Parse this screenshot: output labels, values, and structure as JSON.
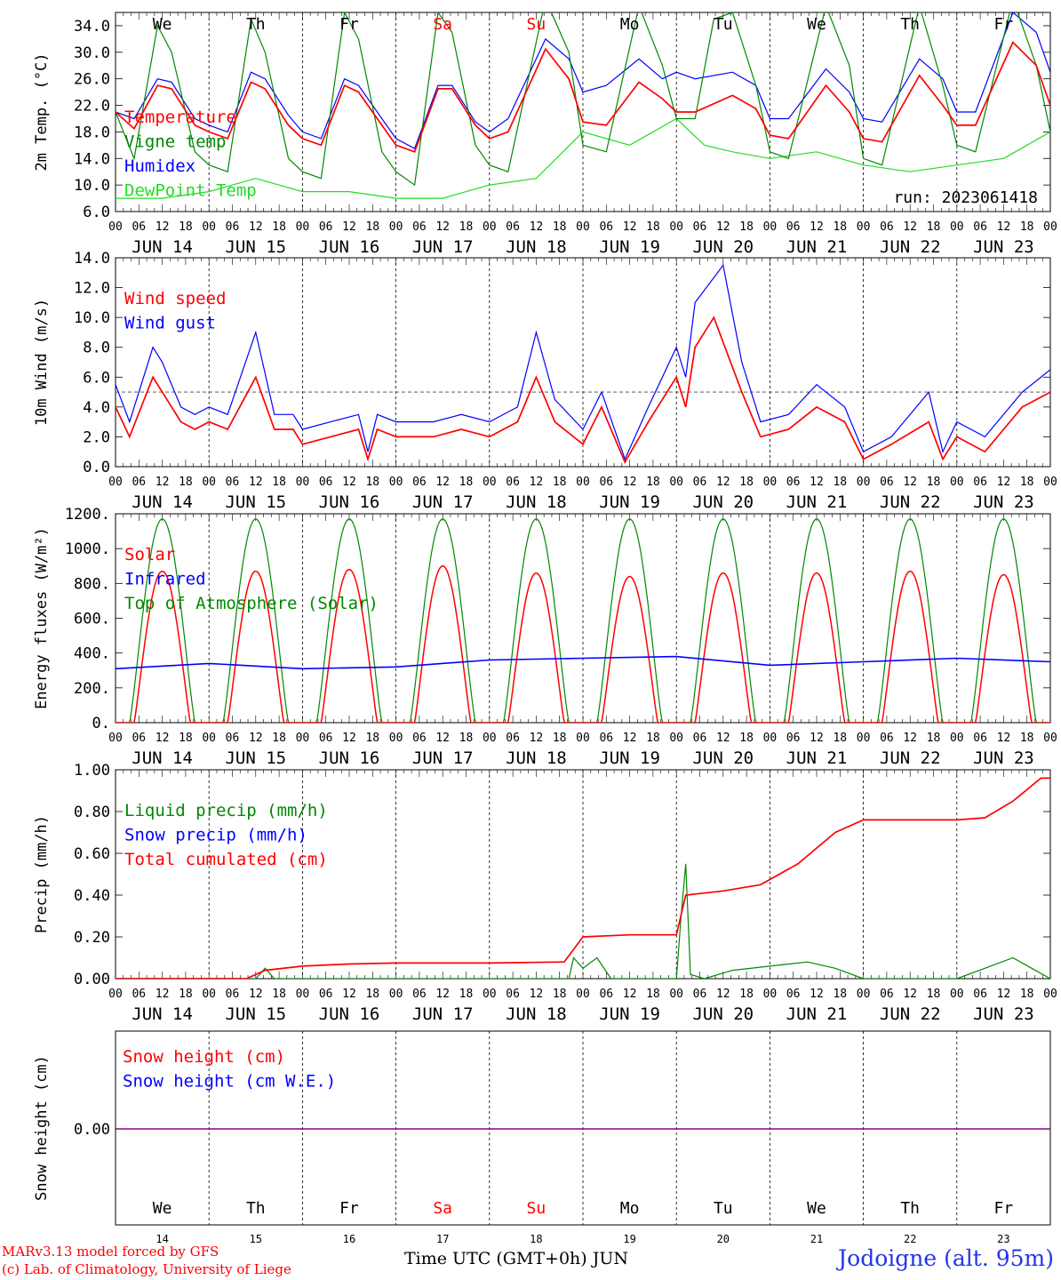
{
  "run_label": "run: 2023061418",
  "days": [
    {
      "abbr": "We",
      "date": "JUN 14",
      "num": "14",
      "weekend": false
    },
    {
      "abbr": "Th",
      "date": "JUN 15",
      "num": "15",
      "weekend": false
    },
    {
      "abbr": "Fr",
      "date": "JUN 16",
      "num": "16",
      "weekend": false
    },
    {
      "abbr": "Sa",
      "date": "JUN 17",
      "num": "17",
      "weekend": true
    },
    {
      "abbr": "Su",
      "date": "JUN 18",
      "num": "18",
      "weekend": true
    },
    {
      "abbr": "Mo",
      "date": "JUN 19",
      "num": "19",
      "weekend": false
    },
    {
      "abbr": "Tu",
      "date": "JUN 20",
      "num": "20",
      "weekend": false
    },
    {
      "abbr": "We",
      "date": "JUN 21",
      "num": "21",
      "weekend": false
    },
    {
      "abbr": "Th",
      "date": "JUN 22",
      "num": "22",
      "weekend": false
    },
    {
      "abbr": "Fr",
      "date": "JUN 23",
      "num": "23",
      "weekend": false
    }
  ],
  "hour_ticks": [
    "00",
    "06",
    "12",
    "18"
  ],
  "hour_tick_end": "00",
  "footer": {
    "credit_line1": "MARv3.13 model forced by GFS",
    "credit_line2": "(c) Lab. of Climatology, University of Liege",
    "x_title": "Time UTC (GMT+0h) JUN",
    "station": "Jodoigne (alt. 95m)"
  },
  "colors": {
    "red": "#ff0000",
    "green": "#008800",
    "blue": "#0000ff",
    "lightgreen": "#22dd22",
    "purple": "#880088",
    "weekend": "#ff0000"
  },
  "chart_data": [
    {
      "type": "line",
      "ylabel": "2m Temp. (°C)",
      "ylim": [
        6,
        36
      ],
      "yticks": [
        "6.0",
        "10.0",
        "14.0",
        "18.0",
        "22.0",
        "26.0",
        "30.0",
        "34.0"
      ],
      "ytick_values": [
        6,
        10,
        14,
        18,
        22,
        26,
        30,
        34
      ],
      "x_unit": "days since JUN 14 00 UTC",
      "legend": [
        "Temperature",
        "Vigne temp",
        "Humidex",
        "DewPoint Temp"
      ],
      "series": [
        {
          "name": "Temperature",
          "color": "red",
          "x": [
            0,
            0.2,
            0.45,
            0.6,
            0.85,
            1.0,
            1.2,
            1.45,
            1.6,
            1.85,
            2.0,
            2.2,
            2.45,
            2.6,
            2.85,
            3.0,
            3.2,
            3.45,
            3.6,
            3.85,
            4.0,
            4.2,
            4.6,
            4.85,
            5.0,
            5.25,
            5.6,
            5.85,
            6.0,
            6.2,
            6.6,
            6.85,
            7.0,
            7.2,
            7.6,
            7.85,
            8.0,
            8.2,
            8.6,
            8.85,
            9.0,
            9.2,
            9.6,
            9.85,
            10.0
          ],
          "y": [
            21,
            18.5,
            25,
            24.5,
            19,
            18,
            17,
            25.5,
            24.5,
            19,
            17,
            16,
            25,
            24,
            19,
            16,
            15,
            24.5,
            24.5,
            19,
            17,
            18,
            30.5,
            26,
            19.5,
            19,
            25.5,
            23,
            21,
            21,
            23.5,
            21.5,
            17.5,
            17,
            25,
            21,
            17,
            16.5,
            26.5,
            22,
            19,
            19,
            31.5,
            28,
            22
          ]
        },
        {
          "name": "Vigne temp",
          "color": "green",
          "x": [
            0,
            0.2,
            0.45,
            0.6,
            0.85,
            1.0,
            1.2,
            1.45,
            1.6,
            1.85,
            2.0,
            2.2,
            2.45,
            2.6,
            2.85,
            3.0,
            3.2,
            3.45,
            3.6,
            3.85,
            4.0,
            4.2,
            4.6,
            4.85,
            5.0,
            5.25,
            5.6,
            5.85,
            6.0,
            6.2,
            6.4,
            6.6,
            6.85,
            7.0,
            7.2,
            7.6,
            7.85,
            8.0,
            8.2,
            8.6,
            8.85,
            9.0,
            9.2,
            9.6,
            9.85,
            10.0
          ],
          "y": [
            21,
            14,
            34,
            30,
            15,
            13,
            12,
            35,
            30,
            14,
            12,
            11,
            36,
            32,
            15,
            12,
            10,
            36,
            33,
            16,
            13,
            12,
            38,
            30,
            16,
            15,
            37,
            28,
            20,
            20,
            35,
            36,
            25,
            15,
            14,
            37,
            28,
            14,
            13,
            37,
            25,
            16,
            15,
            38,
            28,
            18
          ]
        },
        {
          "name": "Humidex",
          "color": "blue",
          "x": [
            0,
            0.2,
            0.45,
            0.6,
            0.85,
            1.0,
            1.2,
            1.45,
            1.6,
            1.85,
            2.0,
            2.2,
            2.45,
            2.6,
            2.85,
            3.0,
            3.2,
            3.45,
            3.6,
            3.85,
            4.0,
            4.2,
            4.6,
            4.85,
            5.0,
            5.25,
            5.6,
            5.85,
            6.0,
            6.2,
            6.6,
            6.85,
            7.0,
            7.2,
            7.6,
            7.85,
            8.0,
            8.2,
            8.6,
            8.85,
            9.0,
            9.2,
            9.6,
            9.85,
            10.0
          ],
          "y": [
            21,
            20,
            26,
            25.5,
            20,
            19,
            18,
            27,
            26,
            20.5,
            18,
            17,
            26,
            25,
            20,
            17,
            15.5,
            25,
            25,
            19.5,
            18,
            20,
            32,
            29,
            24,
            25,
            29,
            26,
            27,
            26,
            27,
            25,
            20,
            20,
            27.5,
            24,
            20,
            19.5,
            29,
            26,
            21,
            21,
            36,
            33,
            27
          ]
        },
        {
          "name": "DewPoint Temp",
          "color": "lightgreen",
          "x": [
            0,
            0.5,
            1.0,
            1.5,
            2.0,
            2.5,
            3.0,
            3.5,
            4.0,
            4.5,
            5.0,
            5.5,
            6.0,
            6.3,
            6.6,
            7.0,
            7.5,
            8.0,
            8.5,
            9.0,
            9.5,
            10.0
          ],
          "y": [
            8,
            8,
            9,
            11,
            9,
            9,
            8,
            8,
            10,
            11,
            18,
            16,
            20,
            16,
            15,
            14,
            15,
            13,
            12,
            13,
            14,
            18
          ]
        }
      ]
    },
    {
      "type": "line",
      "ylabel": "10m Wind (m/s)",
      "ylim": [
        0,
        14
      ],
      "yticks": [
        "0.0",
        "2.0",
        "4.0",
        "6.0",
        "8.0",
        "10.0",
        "12.0",
        "14.0"
      ],
      "ytick_values": [
        0,
        2,
        4,
        6,
        8,
        10,
        12,
        14
      ],
      "reference_line": 5,
      "x_unit": "days since JUN 14 00 UTC",
      "legend": [
        "Wind speed",
        "Wind gust"
      ],
      "series": [
        {
          "name": "Wind speed",
          "color": "red",
          "x": [
            0,
            0.15,
            0.4,
            0.5,
            0.7,
            0.85,
            1.0,
            1.2,
            1.5,
            1.7,
            1.9,
            2.0,
            2.3,
            2.6,
            2.7,
            2.8,
            3.0,
            3.4,
            3.7,
            4.0,
            4.3,
            4.5,
            4.7,
            5.0,
            5.2,
            5.45,
            5.7,
            6.0,
            6.1,
            6.2,
            6.4,
            6.7,
            6.9,
            7.2,
            7.5,
            7.8,
            8.0,
            8.3,
            8.7,
            8.85,
            9.0,
            9.3,
            9.7,
            10.0
          ],
          "y": [
            4,
            2,
            6,
            5,
            3,
            2.5,
            3,
            2.5,
            6,
            2.5,
            2.5,
            1.5,
            2,
            2.5,
            0.5,
            2.5,
            2,
            2,
            2.5,
            2,
            3,
            6,
            3,
            1.5,
            4,
            0.3,
            3,
            6,
            4,
            8,
            10,
            5,
            2,
            2.5,
            4,
            3,
            0.5,
            1.5,
            3,
            0.5,
            2,
            1,
            4,
            5
          ]
        },
        {
          "name": "Wind gust",
          "color": "blue",
          "x": [
            0,
            0.15,
            0.4,
            0.5,
            0.7,
            0.85,
            1.0,
            1.2,
            1.5,
            1.7,
            1.9,
            2.0,
            2.3,
            2.6,
            2.7,
            2.8,
            3.0,
            3.4,
            3.7,
            4.0,
            4.3,
            4.5,
            4.7,
            5.0,
            5.2,
            5.45,
            5.7,
            6.0,
            6.1,
            6.2,
            6.5,
            6.7,
            6.9,
            7.2,
            7.5,
            7.8,
            8.0,
            8.3,
            8.7,
            8.85,
            9.0,
            9.3,
            9.7,
            10.0
          ],
          "y": [
            5.5,
            3,
            8,
            7,
            4,
            3.5,
            4,
            3.5,
            9,
            3.5,
            3.5,
            2.5,
            3,
            3.5,
            1,
            3.5,
            3,
            3,
            3.5,
            3,
            4,
            9,
            4.5,
            2.5,
            5,
            0.5,
            4,
            8,
            6,
            11,
            13.5,
            7,
            3,
            3.5,
            5.5,
            4,
            1,
            2,
            5,
            1,
            3,
            2,
            5,
            6.5
          ]
        }
      ]
    },
    {
      "type": "line",
      "ylabel": "Energy fluxes (W/m²)",
      "ylim": [
        0,
        1200
      ],
      "yticks": [
        "0.",
        "200.",
        "400.",
        "600.",
        "800.",
        "1000.",
        "1200."
      ],
      "ytick_values": [
        0,
        200,
        400,
        600,
        800,
        1000,
        1200
      ],
      "x_unit": "days since JUN 14 00 UTC",
      "legend": [
        "Solar",
        "Infrared",
        "Top of Atmosphere (Solar)"
      ],
      "daily_peak": {
        "Solar": [
          870,
          870,
          880,
          900,
          860,
          840,
          860,
          860,
          870,
          850
        ],
        "Top of Atmosphere (Solar)": 1170
      },
      "series": [
        {
          "name": "Infrared",
          "color": "blue",
          "x": [
            0,
            1,
            2,
            3,
            4,
            5,
            6,
            7,
            8,
            9,
            10
          ],
          "y": [
            310,
            340,
            310,
            320,
            360,
            370,
            380,
            330,
            350,
            370,
            350
          ]
        }
      ]
    },
    {
      "type": "line",
      "ylabel": "Precip (mm/h)",
      "ylim": [
        0,
        1.0
      ],
      "yticks": [
        "0.00",
        "0.20",
        "0.40",
        "0.60",
        "0.80",
        "1.00"
      ],
      "ytick_values": [
        0,
        0.2,
        0.4,
        0.6,
        0.8,
        1.0
      ],
      "x_unit": "days since JUN 14 00 UTC",
      "legend": [
        "Liquid precip (mm/h)",
        "Snow precip (mm/h)",
        "Total cumulated (cm)"
      ],
      "series": [
        {
          "name": "Total cumulated (cm)",
          "color": "red",
          "x": [
            0,
            1.4,
            1.6,
            2.0,
            2.5,
            3.0,
            4.0,
            4.8,
            5.0,
            5.5,
            6.0,
            6.1,
            6.5,
            6.9,
            7.3,
            7.7,
            8.0,
            8.5,
            9.0,
            9.3,
            9.6,
            9.9,
            10.0
          ],
          "y": [
            0,
            0,
            0.04,
            0.06,
            0.07,
            0.075,
            0.075,
            0.08,
            0.2,
            0.21,
            0.21,
            0.4,
            0.42,
            0.45,
            0.55,
            0.7,
            0.76,
            0.76,
            0.76,
            0.77,
            0.85,
            0.96,
            0.96
          ]
        },
        {
          "name": "Liquid precip (mm/h)",
          "color": "green",
          "x": [
            0,
            1.5,
            1.6,
            1.7,
            4.85,
            4.9,
            5.0,
            5.15,
            5.3,
            6.0,
            6.05,
            6.1,
            6.15,
            6.3,
            6.6,
            7.0,
            7.4,
            7.7,
            8.0,
            9.0,
            9.3,
            9.6,
            9.8,
            10.0
          ],
          "y": [
            0,
            0,
            0.05,
            0,
            0,
            0.1,
            0.05,
            0.1,
            0,
            0,
            0.3,
            0.55,
            0.02,
            0,
            0.04,
            0.06,
            0.08,
            0.05,
            0,
            0,
            0.05,
            0.1,
            0.05,
            0
          ]
        }
      ]
    },
    {
      "type": "line",
      "ylabel": "Snow height (cm)",
      "yticks": [
        "0.00"
      ],
      "ytick_values": [
        0
      ],
      "x_unit": "days since JUN 14 00 UTC",
      "legend": [
        "Snow height (cm)",
        "Snow height (cm W.E.)"
      ],
      "series": [
        {
          "name": "Snow height (cm)",
          "color": "red",
          "x": [
            0,
            10
          ],
          "y": [
            0,
            0
          ]
        },
        {
          "name": "Snow height (cm W.E.)",
          "color": "blue",
          "x": [
            0,
            10
          ],
          "y": [
            0,
            0
          ]
        }
      ]
    }
  ]
}
